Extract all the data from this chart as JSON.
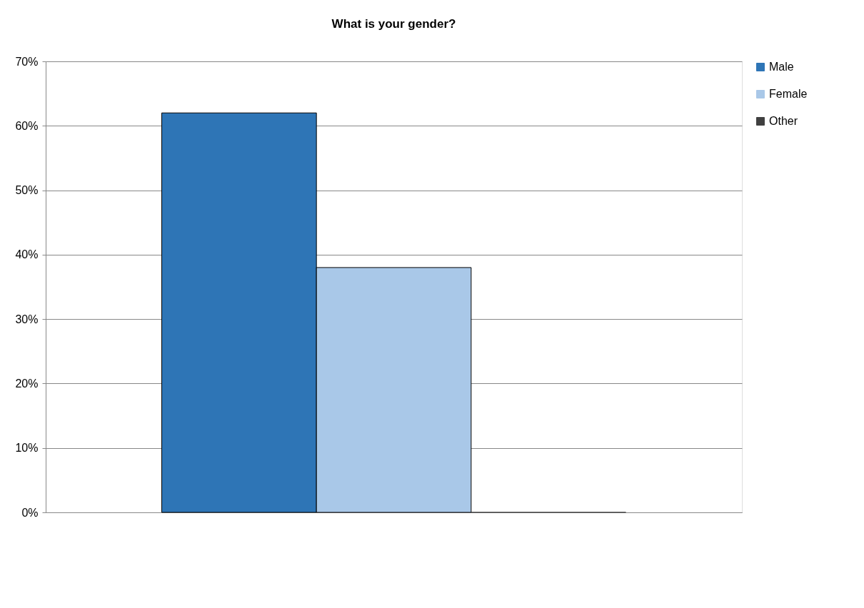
{
  "chart_data": {
    "type": "bar",
    "title": "What is your gender?",
    "categories": [
      null
    ],
    "series": [
      {
        "name": "Male",
        "color": "#2e75b6",
        "values": [
          62
        ]
      },
      {
        "name": "Female",
        "color": "#a9c8e8",
        "values": [
          38
        ]
      },
      {
        "name": "Other",
        "color": "#404040",
        "values": [
          0
        ]
      }
    ],
    "ylim": [
      0,
      70
    ],
    "yticks": [
      {
        "value": 0,
        "label": "0%"
      },
      {
        "value": 10,
        "label": "10%"
      },
      {
        "value": 20,
        "label": "20%"
      },
      {
        "value": 30,
        "label": "30%"
      },
      {
        "value": 40,
        "label": "40%"
      },
      {
        "value": 50,
        "label": "50%"
      },
      {
        "value": 60,
        "label": "60%"
      },
      {
        "value": 70,
        "label": "70%"
      }
    ],
    "grid": "y",
    "legend": "right"
  }
}
